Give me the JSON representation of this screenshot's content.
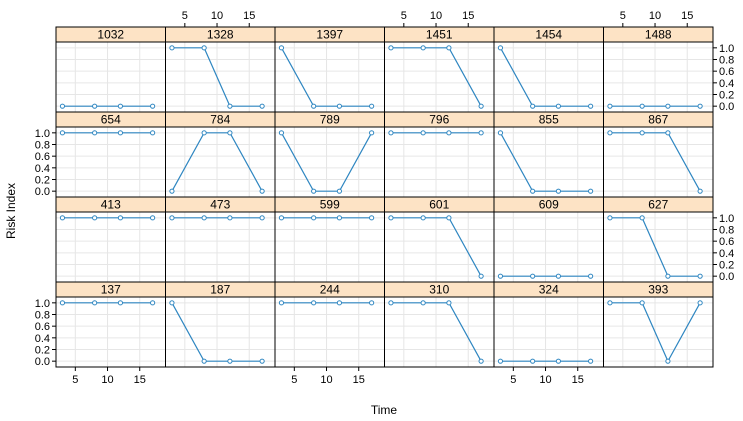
{
  "chart_data": {
    "type": "line",
    "xlabel": "Time",
    "ylabel": "Risk Index",
    "xlim": [
      2,
      19
    ],
    "ylim": [
      -0.1,
      1.1
    ],
    "x_ticks": [
      5,
      10,
      15
    ],
    "y_ticks": [
      0.0,
      0.2,
      0.4,
      0.6,
      0.8,
      1.0
    ],
    "x_tick_labels": [
      "5",
      "10",
      "15"
    ],
    "y_tick_labels": [
      "0.0",
      "0.2",
      "0.4",
      "0.6",
      "0.8",
      "1.0"
    ],
    "grid": true,
    "x": [
      3,
      8,
      12,
      17
    ],
    "colors": {
      "line": "#2e86c1",
      "strip": "#fde3c5",
      "grid": "#e6e6e6",
      "border": "#000000"
    },
    "panels": [
      {
        "label": "1032",
        "values": [
          0,
          0,
          0,
          0
        ]
      },
      {
        "label": "1328",
        "values": [
          1,
          1,
          0,
          0
        ]
      },
      {
        "label": "1397",
        "values": [
          1,
          0,
          0,
          0
        ]
      },
      {
        "label": "1451",
        "values": [
          1,
          1,
          1,
          0
        ]
      },
      {
        "label": "1454",
        "values": [
          1,
          0,
          0,
          0
        ]
      },
      {
        "label": "1488",
        "values": [
          0,
          0,
          0,
          0
        ]
      },
      {
        "label": "654",
        "values": [
          1,
          1,
          1,
          1
        ]
      },
      {
        "label": "784",
        "values": [
          0,
          1,
          1,
          0
        ]
      },
      {
        "label": "789",
        "values": [
          1,
          0,
          0,
          1
        ]
      },
      {
        "label": "796",
        "values": [
          1,
          1,
          1,
          1
        ]
      },
      {
        "label": "855",
        "values": [
          1,
          0,
          0,
          0
        ]
      },
      {
        "label": "867",
        "values": [
          1,
          1,
          1,
          0
        ]
      },
      {
        "label": "413",
        "values": [
          1,
          1,
          1,
          1
        ]
      },
      {
        "label": "473",
        "values": [
          1,
          1,
          1,
          1
        ]
      },
      {
        "label": "599",
        "values": [
          1,
          1,
          1,
          1
        ]
      },
      {
        "label": "601",
        "values": [
          1,
          1,
          1,
          0
        ]
      },
      {
        "label": "609",
        "values": [
          0,
          0,
          0,
          0
        ]
      },
      {
        "label": "627",
        "values": [
          1,
          1,
          0,
          0
        ]
      },
      {
        "label": "137",
        "values": [
          1,
          1,
          1,
          1
        ]
      },
      {
        "label": "187",
        "values": [
          1,
          0,
          0,
          0
        ]
      },
      {
        "label": "244",
        "values": [
          1,
          1,
          1,
          1
        ]
      },
      {
        "label": "310",
        "values": [
          1,
          1,
          1,
          0
        ]
      },
      {
        "label": "324",
        "values": [
          0,
          0,
          0,
          0
        ]
      },
      {
        "label": "393",
        "values": [
          1,
          1,
          0,
          1
        ]
      }
    ]
  }
}
